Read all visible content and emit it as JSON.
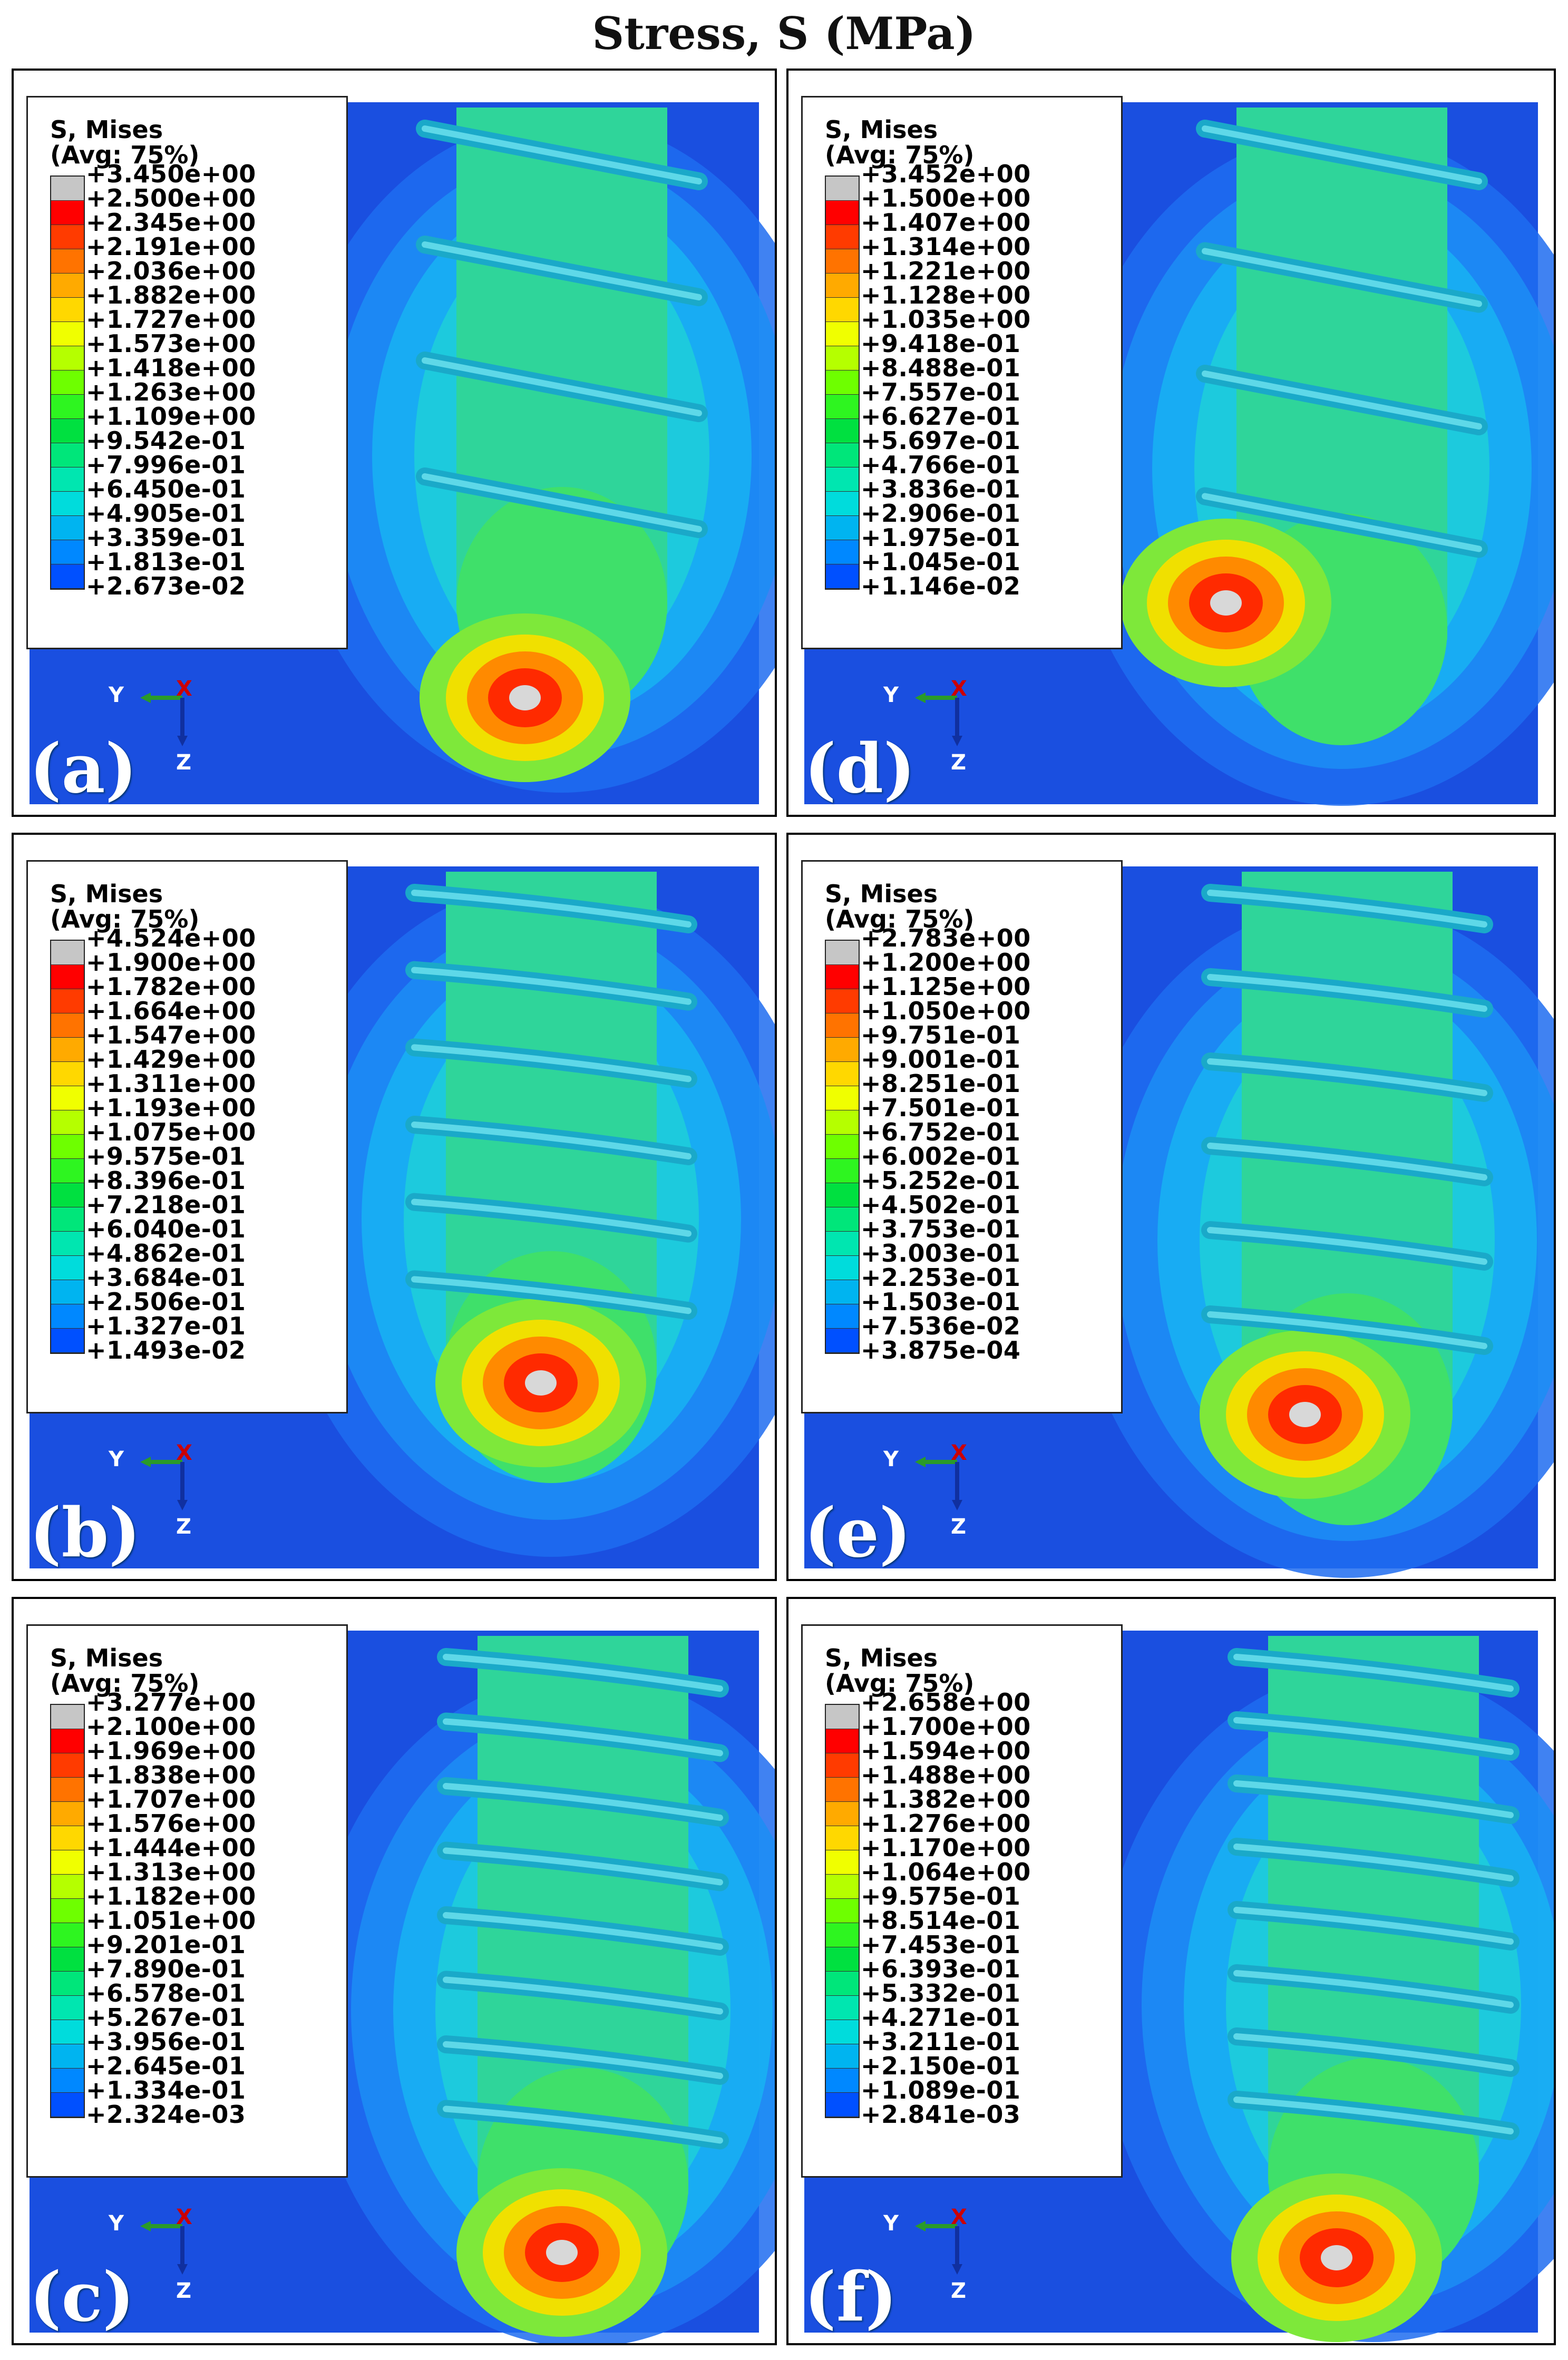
{
  "title": "Stress, S (MPa)",
  "legend_title": "S, Mises",
  "legend_subtitle": "(Avg: 75%)",
  "colors": {
    "scale_high_to_low": [
      "#c6c6c6",
      "#ff0000",
      "#ff3b00",
      "#ff7300",
      "#ffaa00",
      "#ffd800",
      "#f0ff00",
      "#b5ff00",
      "#6eff00",
      "#2ef520",
      "#00e040",
      "#00e67a",
      "#00e6b0",
      "#00dcdc",
      "#00b4f0",
      "#0088ff",
      "#0050ff",
      "#0018ff"
    ],
    "background_field": "#1a4fe0"
  },
  "axes_triad": {
    "y": "Y",
    "x": "X",
    "z": "Z",
    "y_color": "#2a9a2a",
    "x_color": "#cc0000",
    "z_color": "#1030a0"
  },
  "panels": [
    {
      "id": "a",
      "letter": "(a)",
      "values": [
        "+3.450e+00",
        "+2.500e+00",
        "+2.345e+00",
        "+2.191e+00",
        "+2.036e+00",
        "+1.882e+00",
        "+1.727e+00",
        "+1.573e+00",
        "+1.418e+00",
        "+1.263e+00",
        "+1.109e+00",
        "+9.542e-01",
        "+7.996e-01",
        "+6.450e-01",
        "+4.905e-01",
        "+3.359e-01",
        "+1.813e-01",
        "+2.673e-02"
      ]
    },
    {
      "id": "b",
      "letter": "(b)",
      "values": [
        "+4.524e+00",
        "+1.900e+00",
        "+1.782e+00",
        "+1.664e+00",
        "+1.547e+00",
        "+1.429e+00",
        "+1.311e+00",
        "+1.193e+00",
        "+1.075e+00",
        "+9.575e-01",
        "+8.396e-01",
        "+7.218e-01",
        "+6.040e-01",
        "+4.862e-01",
        "+3.684e-01",
        "+2.506e-01",
        "+1.327e-01",
        "+1.493e-02"
      ]
    },
    {
      "id": "c",
      "letter": "(c)",
      "values": [
        "+3.277e+00",
        "+2.100e+00",
        "+1.969e+00",
        "+1.838e+00",
        "+1.707e+00",
        "+1.576e+00",
        "+1.444e+00",
        "+1.313e+00",
        "+1.182e+00",
        "+1.051e+00",
        "+9.201e-01",
        "+7.890e-01",
        "+6.578e-01",
        "+5.267e-01",
        "+3.956e-01",
        "+2.645e-01",
        "+1.334e-01",
        "+2.324e-03"
      ]
    },
    {
      "id": "d",
      "letter": "(d)",
      "values": [
        "+3.452e+00",
        "+1.500e+00",
        "+1.407e+00",
        "+1.314e+00",
        "+1.221e+00",
        "+1.128e+00",
        "+1.035e+00",
        "+9.418e-01",
        "+8.488e-01",
        "+7.557e-01",
        "+6.627e-01",
        "+5.697e-01",
        "+4.766e-01",
        "+3.836e-01",
        "+2.906e-01",
        "+1.975e-01",
        "+1.045e-01",
        "+1.146e-02"
      ]
    },
    {
      "id": "e",
      "letter": "(e)",
      "values": [
        "+2.783e+00",
        "+1.200e+00",
        "+1.125e+00",
        "+1.050e+00",
        "+9.751e-01",
        "+9.001e-01",
        "+8.251e-01",
        "+7.501e-01",
        "+6.752e-01",
        "+6.002e-01",
        "+5.252e-01",
        "+4.502e-01",
        "+3.753e-01",
        "+3.003e-01",
        "+2.253e-01",
        "+1.503e-01",
        "+7.536e-02",
        "+3.875e-04"
      ]
    },
    {
      "id": "f",
      "letter": "(f)",
      "values": [
        "+2.658e+00",
        "+1.700e+00",
        "+1.594e+00",
        "+1.488e+00",
        "+1.382e+00",
        "+1.276e+00",
        "+1.170e+00",
        "+1.064e+00",
        "+9.575e-01",
        "+8.514e-01",
        "+7.453e-01",
        "+6.393e-01",
        "+5.332e-01",
        "+4.271e-01",
        "+3.211e-01",
        "+2.150e-01",
        "+1.089e-01",
        "+2.841e-03"
      ]
    }
  ]
}
